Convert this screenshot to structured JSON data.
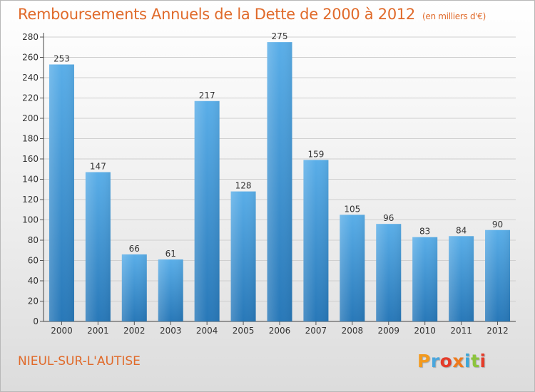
{
  "title": "Remboursements Annuels de la Dette de 2000 à 2012",
  "unit": "(en milliers d'€)",
  "commune": "NIEUL-SUR-L'AUTISE",
  "logo": {
    "text": "Proxiti",
    "letter_colors": [
      "#f39a1e",
      "#4aa6dd",
      "#e53c2a",
      "#ee7a1c",
      "#3aa6d8",
      "#8cc43d",
      "#e53c2a"
    ]
  },
  "colors": {
    "accent": "#e06a2a",
    "bar_top": "#5aaee8",
    "bar_bottom": "#2878b8"
  },
  "chart_data": {
    "type": "bar",
    "title": "Remboursements Annuels de la Dette de 2000 à 2012",
    "categories": [
      "2000",
      "2001",
      "2002",
      "2003",
      "2004",
      "2005",
      "2006",
      "2007",
      "2008",
      "2009",
      "2010",
      "2011",
      "2012"
    ],
    "values": [
      253,
      147,
      66,
      61,
      217,
      128,
      275,
      159,
      105,
      96,
      83,
      84,
      90
    ],
    "ylim": [
      0,
      280
    ],
    "yticks": [
      0,
      20,
      40,
      60,
      80,
      100,
      120,
      140,
      160,
      180,
      200,
      220,
      240,
      260,
      280
    ],
    "grid": true,
    "legend": "none"
  }
}
